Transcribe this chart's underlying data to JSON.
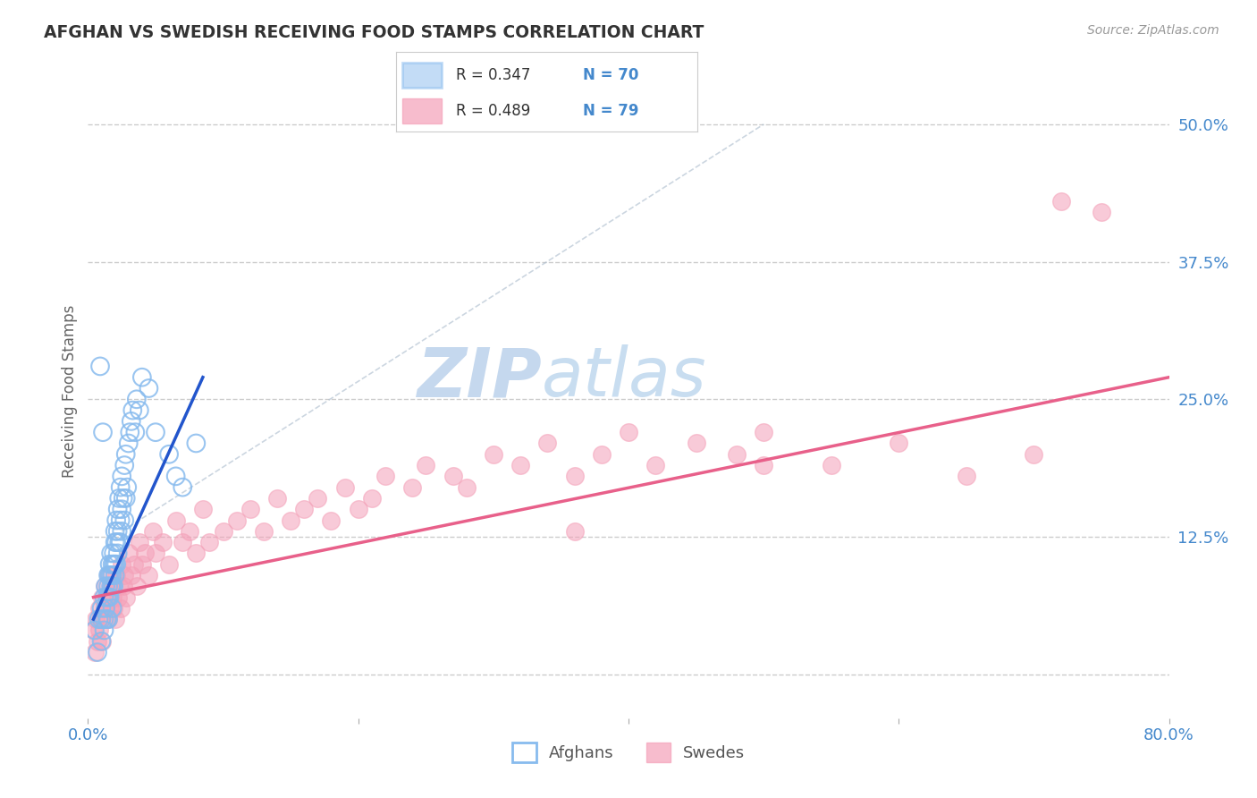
{
  "title": "AFGHAN VS SWEDISH RECEIVING FOOD STAMPS CORRELATION CHART",
  "source_text": "Source: ZipAtlas.com",
  "ylabel": "Receiving Food Stamps",
  "y_tick_labels_right": [
    "12.5%",
    "25.0%",
    "37.5%",
    "50.0%"
  ],
  "afghan_color": "#88bbee",
  "swedish_color": "#f4a0b8",
  "afghan_line_color": "#2255cc",
  "swedish_line_color": "#e8608a",
  "watermark_zip": "ZIP",
  "watermark_atlas": "atlas",
  "watermark_zip_color": "#c5d8ee",
  "watermark_atlas_color": "#c8ddf0",
  "background_color": "#ffffff",
  "grid_color": "#cccccc",
  "title_color": "#333333",
  "axis_color": "#4488cc",
  "xlim": [
    0.0,
    0.8
  ],
  "ylim": [
    -0.04,
    0.555
  ],
  "afghan_scatter_x": [
    0.005,
    0.007,
    0.008,
    0.01,
    0.01,
    0.01,
    0.012,
    0.012,
    0.012,
    0.013,
    0.013,
    0.014,
    0.014,
    0.015,
    0.015,
    0.015,
    0.015,
    0.016,
    0.016,
    0.016,
    0.017,
    0.017,
    0.017,
    0.018,
    0.018,
    0.018,
    0.018,
    0.019,
    0.019,
    0.019,
    0.02,
    0.02,
    0.02,
    0.02,
    0.021,
    0.021,
    0.021,
    0.022,
    0.022,
    0.022,
    0.023,
    0.023,
    0.024,
    0.024,
    0.024,
    0.025,
    0.025,
    0.025,
    0.026,
    0.027,
    0.027,
    0.028,
    0.028,
    0.029,
    0.03,
    0.031,
    0.032,
    0.033,
    0.035,
    0.036,
    0.038,
    0.04,
    0.045,
    0.05,
    0.06,
    0.065,
    0.07,
    0.08,
    0.009,
    0.011
  ],
  "afghan_scatter_y": [
    0.04,
    0.02,
    0.05,
    0.06,
    0.05,
    0.03,
    0.07,
    0.05,
    0.04,
    0.08,
    0.06,
    0.07,
    0.05,
    0.09,
    0.08,
    0.07,
    0.05,
    0.1,
    0.09,
    0.07,
    0.11,
    0.09,
    0.08,
    0.1,
    0.09,
    0.08,
    0.06,
    0.11,
    0.1,
    0.08,
    0.13,
    0.12,
    0.1,
    0.09,
    0.14,
    0.12,
    0.1,
    0.15,
    0.13,
    0.11,
    0.16,
    0.12,
    0.17,
    0.14,
    0.12,
    0.18,
    0.15,
    0.13,
    0.16,
    0.19,
    0.14,
    0.2,
    0.16,
    0.17,
    0.21,
    0.22,
    0.23,
    0.24,
    0.22,
    0.25,
    0.24,
    0.27,
    0.26,
    0.22,
    0.2,
    0.18,
    0.17,
    0.21,
    0.28,
    0.22
  ],
  "swedish_scatter_x": [
    0.004,
    0.005,
    0.006,
    0.007,
    0.008,
    0.008,
    0.009,
    0.01,
    0.01,
    0.012,
    0.013,
    0.014,
    0.015,
    0.015,
    0.016,
    0.017,
    0.018,
    0.019,
    0.02,
    0.021,
    0.022,
    0.023,
    0.024,
    0.025,
    0.026,
    0.027,
    0.028,
    0.03,
    0.032,
    0.034,
    0.036,
    0.038,
    0.04,
    0.042,
    0.045,
    0.048,
    0.05,
    0.055,
    0.06,
    0.065,
    0.07,
    0.075,
    0.08,
    0.085,
    0.09,
    0.1,
    0.11,
    0.12,
    0.13,
    0.14,
    0.15,
    0.16,
    0.17,
    0.18,
    0.19,
    0.2,
    0.21,
    0.22,
    0.24,
    0.25,
    0.27,
    0.28,
    0.3,
    0.32,
    0.34,
    0.36,
    0.38,
    0.4,
    0.42,
    0.45,
    0.48,
    0.5,
    0.55,
    0.6,
    0.65,
    0.7,
    0.72,
    0.75,
    0.36,
    0.5
  ],
  "swedish_scatter_y": [
    0.04,
    0.02,
    0.05,
    0.03,
    0.06,
    0.04,
    0.05,
    0.07,
    0.03,
    0.08,
    0.06,
    0.07,
    0.05,
    0.09,
    0.06,
    0.08,
    0.07,
    0.06,
    0.05,
    0.09,
    0.07,
    0.08,
    0.06,
    0.1,
    0.08,
    0.09,
    0.07,
    0.11,
    0.09,
    0.1,
    0.08,
    0.12,
    0.1,
    0.11,
    0.09,
    0.13,
    0.11,
    0.12,
    0.1,
    0.14,
    0.12,
    0.13,
    0.11,
    0.15,
    0.12,
    0.13,
    0.14,
    0.15,
    0.13,
    0.16,
    0.14,
    0.15,
    0.16,
    0.14,
    0.17,
    0.15,
    0.16,
    0.18,
    0.17,
    0.19,
    0.18,
    0.17,
    0.2,
    0.19,
    0.21,
    0.18,
    0.2,
    0.22,
    0.19,
    0.21,
    0.2,
    0.22,
    0.19,
    0.21,
    0.18,
    0.2,
    0.43,
    0.42,
    0.13,
    0.19
  ],
  "afghan_line_x": [
    0.004,
    0.085
  ],
  "afghan_line_y": [
    0.05,
    0.27
  ],
  "swedish_line_x": [
    0.004,
    0.8
  ],
  "swedish_line_y": [
    0.07,
    0.27
  ],
  "diag_line_x": [
    0.025,
    0.5
  ],
  "diag_line_y": [
    0.13,
    0.5
  ]
}
